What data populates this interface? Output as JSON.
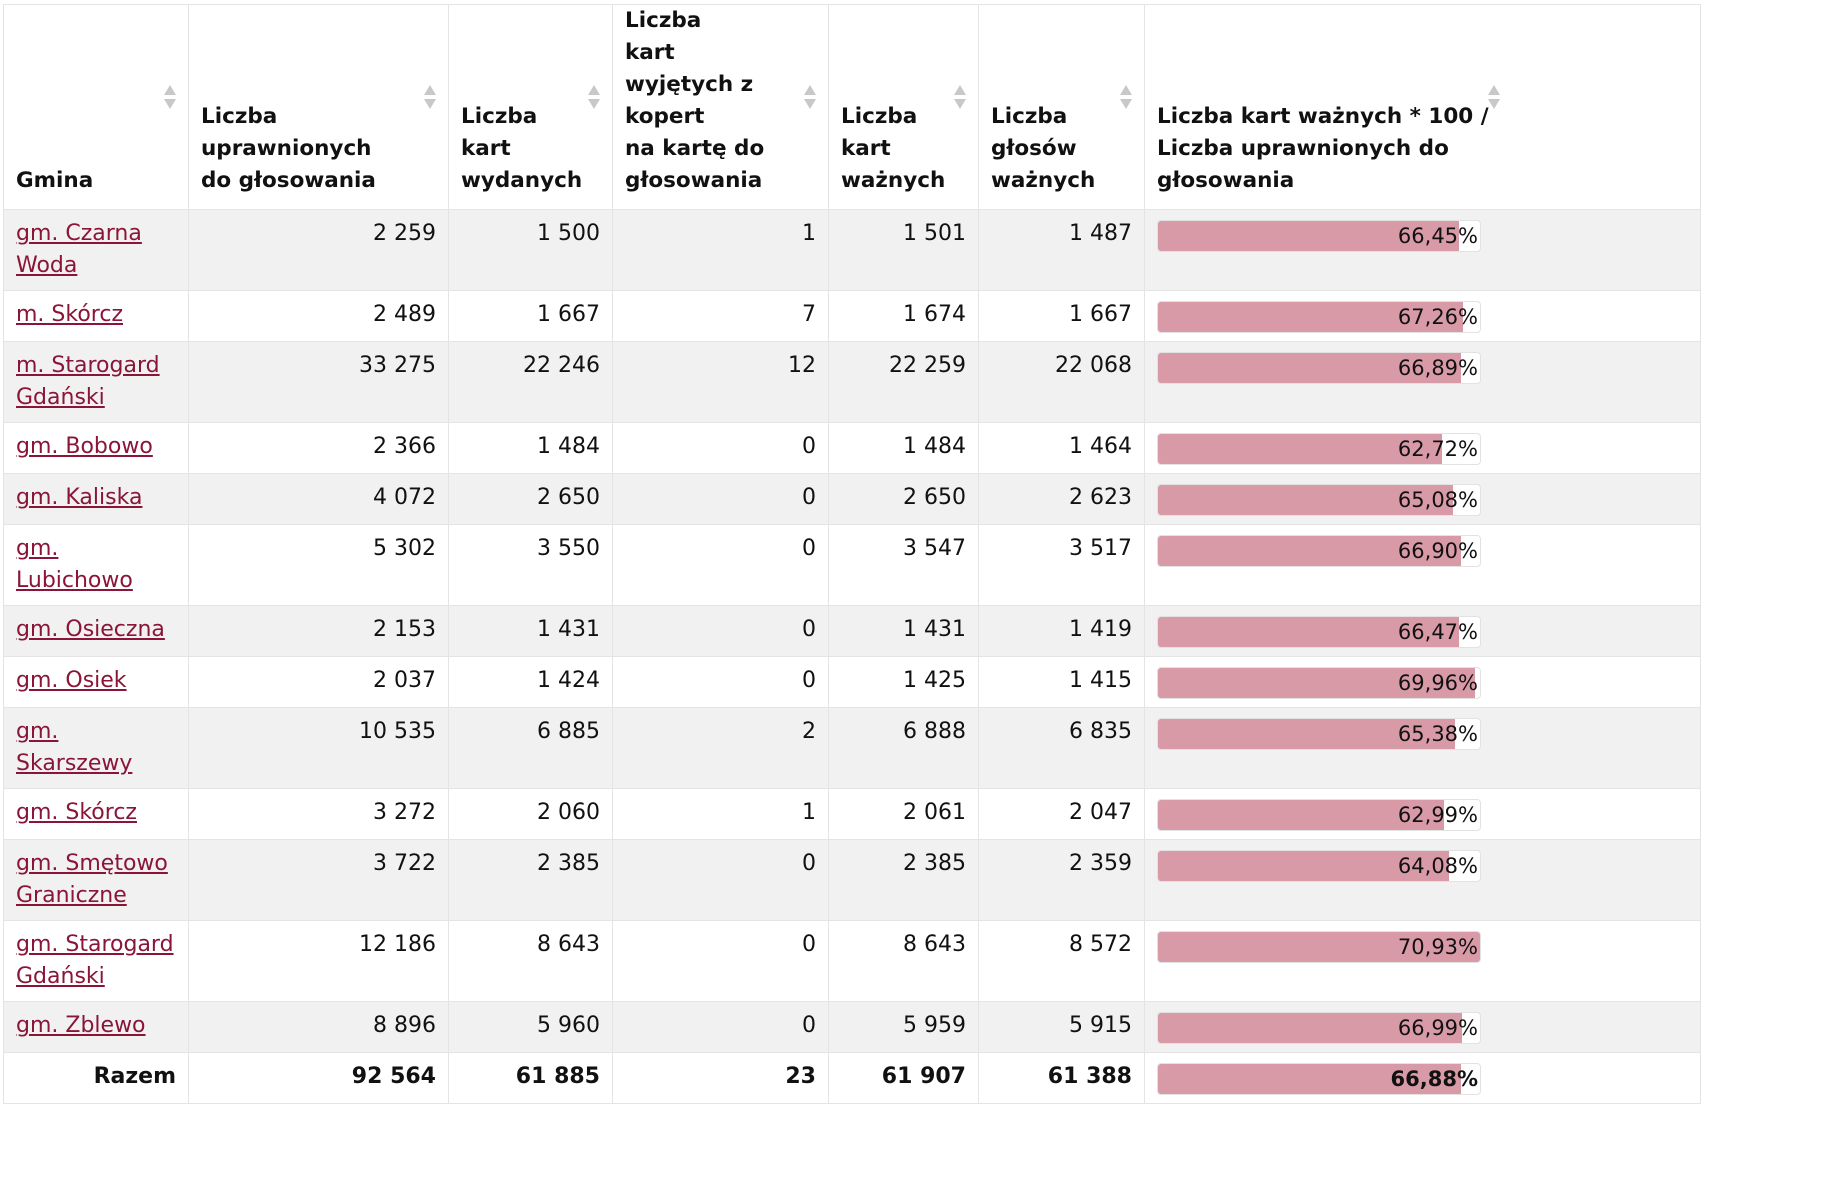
{
  "table": {
    "headers": {
      "gmina": "Gmina",
      "uprawnionych": [
        "Liczba",
        "uprawnionych",
        "do głosowania"
      ],
      "wydanych": [
        "Liczba",
        "kart",
        "wydanych"
      ],
      "wyjetych": [
        "Liczba",
        "kart wyjętych z",
        "kopert",
        "na kartę do",
        "głosowania"
      ],
      "waznych": [
        "Liczba",
        "kart",
        "ważnych"
      ],
      "glosow": [
        "Liczba",
        "głosów",
        "ważnych"
      ],
      "frekwencja": [
        "Liczba kart ważnych * 100 /",
        "Liczba uprawnionych do",
        "głosowania"
      ]
    },
    "bar_color": "#d99aa8",
    "link_color": "#8a1538",
    "rows": [
      {
        "gmina": [
          "gm. Czarna Woda"
        ],
        "uprawnionych": "2 259",
        "wydanych": "1 500",
        "wyjetych": "1",
        "waznych": "1 501",
        "glosow": "1 487",
        "frekwencja": "66,45%",
        "frekwencja_value": 66.45
      },
      {
        "gmina": [
          "m. Skórcz"
        ],
        "uprawnionych": "2 489",
        "wydanych": "1 667",
        "wyjetych": "7",
        "waznych": "1 674",
        "glosow": "1 667",
        "frekwencja": "67,26%",
        "frekwencja_value": 67.26
      },
      {
        "gmina": [
          "m. Starogard",
          "Gdański"
        ],
        "uprawnionych": "33 275",
        "wydanych": "22 246",
        "wyjetych": "12",
        "waznych": "22 259",
        "glosow": "22 068",
        "frekwencja": "66,89%",
        "frekwencja_value": 66.89
      },
      {
        "gmina": [
          "gm. Bobowo"
        ],
        "uprawnionych": "2 366",
        "wydanych": "1 484",
        "wyjetych": "0",
        "waznych": "1 484",
        "glosow": "1 464",
        "frekwencja": "62,72%",
        "frekwencja_value": 62.72
      },
      {
        "gmina": [
          "gm. Kaliska"
        ],
        "uprawnionych": "4 072",
        "wydanych": "2 650",
        "wyjetych": "0",
        "waznych": "2 650",
        "glosow": "2 623",
        "frekwencja": "65,08%",
        "frekwencja_value": 65.08
      },
      {
        "gmina": [
          "gm. Lubichowo"
        ],
        "uprawnionych": "5 302",
        "wydanych": "3 550",
        "wyjetych": "0",
        "waznych": "3 547",
        "glosow": "3 517",
        "frekwencja": "66,90%",
        "frekwencja_value": 66.9
      },
      {
        "gmina": [
          "gm. Osieczna"
        ],
        "uprawnionych": "2 153",
        "wydanych": "1 431",
        "wyjetych": "0",
        "waznych": "1 431",
        "glosow": "1 419",
        "frekwencja": "66,47%",
        "frekwencja_value": 66.47
      },
      {
        "gmina": [
          "gm. Osiek"
        ],
        "uprawnionych": "2 037",
        "wydanych": "1 424",
        "wyjetych": "0",
        "waznych": "1 425",
        "glosow": "1 415",
        "frekwencja": "69,96%",
        "frekwencja_value": 69.96
      },
      {
        "gmina": [
          "gm. Skarszewy"
        ],
        "uprawnionych": "10 535",
        "wydanych": "6 885",
        "wyjetych": "2",
        "waznych": "6 888",
        "glosow": "6 835",
        "frekwencja": "65,38%",
        "frekwencja_value": 65.38
      },
      {
        "gmina": [
          "gm. Skórcz"
        ],
        "uprawnionych": "3 272",
        "wydanych": "2 060",
        "wyjetych": "1",
        "waznych": "2 061",
        "glosow": "2 047",
        "frekwencja": "62,99%",
        "frekwencja_value": 62.99
      },
      {
        "gmina": [
          "gm. Smętowo",
          "Graniczne"
        ],
        "uprawnionych": "3 722",
        "wydanych": "2 385",
        "wyjetych": "0",
        "waznych": "2 385",
        "glosow": "2 359",
        "frekwencja": "64,08%",
        "frekwencja_value": 64.08
      },
      {
        "gmina": [
          "gm. Starogard",
          "Gdański"
        ],
        "uprawnionych": "12 186",
        "wydanych": "8 643",
        "wyjetych": "0",
        "waznych": "8 643",
        "glosow": "8 572",
        "frekwencja": "70,93%",
        "frekwencja_value": 70.93
      },
      {
        "gmina": [
          "gm. Zblewo"
        ],
        "uprawnionych": "8 896",
        "wydanych": "5 960",
        "wyjetych": "0",
        "waznych": "5 959",
        "glosow": "5 915",
        "frekwencja": "66,99%",
        "frekwencja_value": 66.99
      }
    ],
    "total": {
      "label": "Razem",
      "uprawnionych": "92 564",
      "wydanych": "61 885",
      "wyjetych": "23",
      "waznych": "61 907",
      "glosow": "61 388",
      "frekwencja": "66,88%",
      "frekwencja_value": 66.88
    }
  }
}
